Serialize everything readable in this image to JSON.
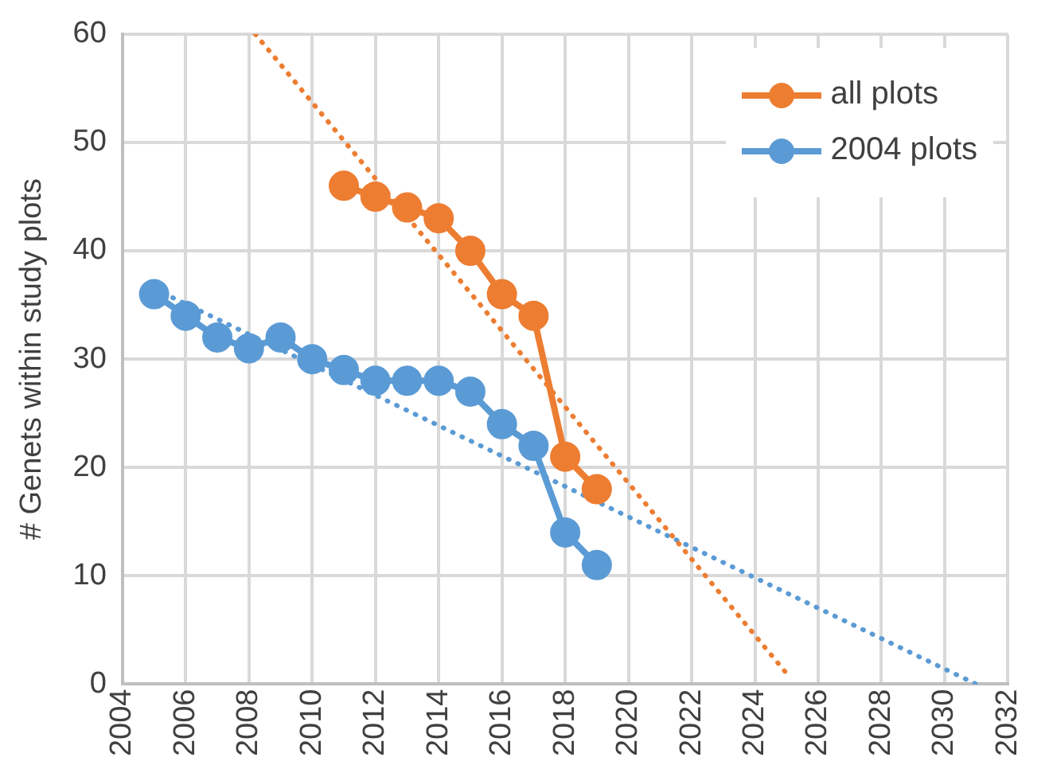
{
  "chart_data": {
    "type": "line",
    "ylabel": "# Genets within study plots",
    "xlim": [
      2004,
      2032
    ],
    "xticks": [
      2004,
      2006,
      2008,
      2010,
      2012,
      2014,
      2016,
      2018,
      2020,
      2022,
      2024,
      2026,
      2028,
      2030,
      2032
    ],
    "ylim": [
      0,
      60
    ],
    "yticks": [
      0,
      10,
      20,
      30,
      40,
      50,
      60
    ],
    "grid": true,
    "legend": "top right",
    "marker": "circle",
    "line_style": "solid",
    "series": [
      {
        "name": "all plots",
        "color": "#ed7d31",
        "x": [
          2011,
          2012,
          2013,
          2014,
          2015,
          2016,
          2017,
          2018,
          2019
        ],
        "values": [
          46,
          45,
          44,
          43,
          40,
          36,
          34,
          21,
          18
        ]
      },
      {
        "name": "2004 plots",
        "color": "#5b9bd5",
        "x": [
          2005,
          2006,
          2007,
          2008,
          2009,
          2010,
          2011,
          2012,
          2013,
          2014,
          2015,
          2016,
          2017,
          2018,
          2019
        ],
        "values": [
          36,
          34,
          32,
          31,
          32,
          30,
          29,
          28,
          28,
          28,
          27,
          24,
          22,
          14,
          11
        ]
      },
      {
        "color": "#ed7d31",
        "x": [
          2008.2,
          2025
        ],
        "values": [
          60,
          1
        ],
        "marker": "none",
        "line_style": "dotted"
      },
      {
        "color": "#5b9bd5",
        "x": [
          2005,
          2031
        ],
        "values": [
          36.5,
          0
        ],
        "marker": "none",
        "line_style": "dotted"
      }
    ]
  }
}
